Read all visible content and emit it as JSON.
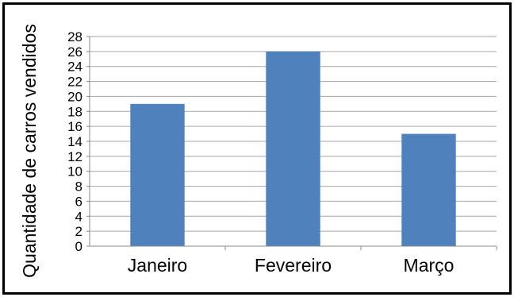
{
  "chart_data": {
    "type": "bar",
    "title": "",
    "xlabel": "",
    "ylabel": "Quantidade de carros vendidos",
    "categories": [
      "Janeiro",
      "Fevereiro",
      "Março"
    ],
    "values": [
      19,
      26,
      15
    ],
    "ylim": [
      0,
      28
    ],
    "ytick_step": 2,
    "grid": true,
    "legend": "none",
    "bar_color": "#4f81bd",
    "grid_color": "#a6a6a6"
  }
}
